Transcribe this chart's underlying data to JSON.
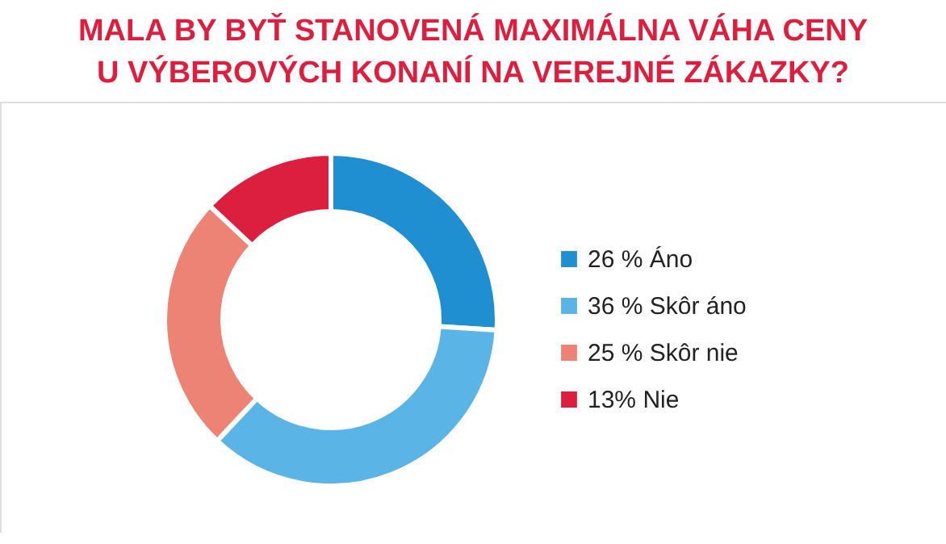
{
  "chart_data": {
    "type": "donut",
    "title": "MALA BY BYŤ STANOVENÁ MAXIMÁLNA VÁHA CENY\nU VÝBEROVÝCH KONANÍ NA VEREJNÉ ZÁKAZKY?",
    "categories": [
      "Áno",
      "Skôr áno",
      "Skôr nie",
      "Nie"
    ],
    "values": [
      26,
      36,
      25,
      13
    ],
    "colors": [
      "#1f8fd1",
      "#5ab4e5",
      "#ec8374",
      "#dc1f3f"
    ],
    "value_labels": [
      "26 %",
      "36 %",
      "25 %",
      "13%"
    ],
    "legend": "right"
  }
}
